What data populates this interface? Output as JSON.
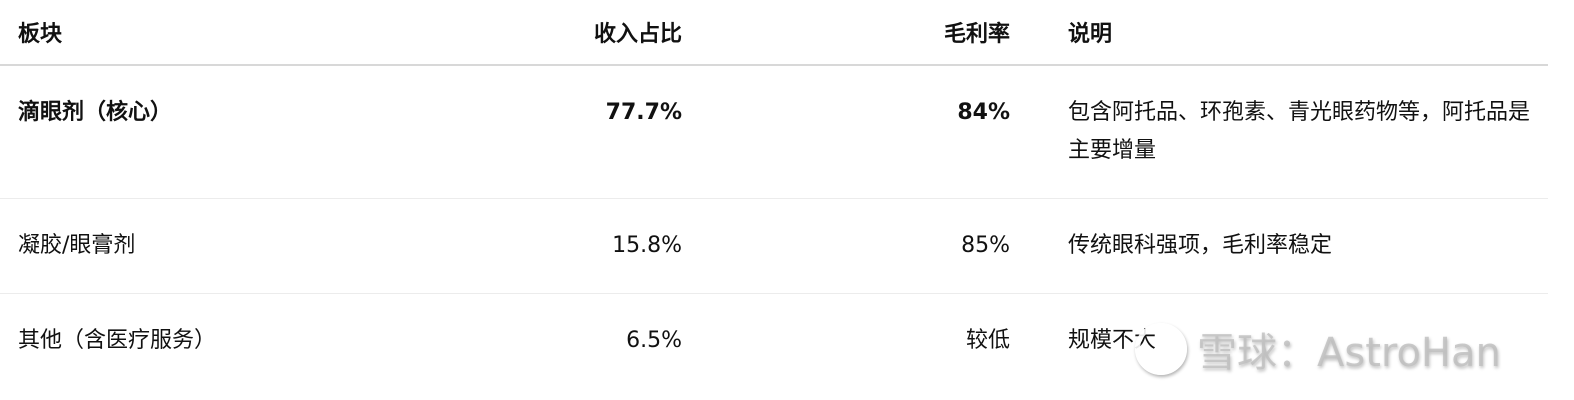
{
  "table": {
    "headers": [
      "板块",
      "收入占比",
      "毛利率",
      "说明"
    ],
    "rows": [
      {
        "segment": "滴眼剂（核心）",
        "share": "77.7%",
        "margin": "84%",
        "note": "包含阿托品、环孢素、青光眼药物等，阿托品是主要增量",
        "bold": true
      },
      {
        "segment": "凝胶/眼膏剂",
        "share": "15.8%",
        "margin": "85%",
        "note": "传统眼科强项，毛利率稳定"
      },
      {
        "segment": "其他（含医疗服务）",
        "share": "6.5%",
        "margin": "较低",
        "note": "规模不大"
      }
    ]
  },
  "watermark": "雪球：AstroHan"
}
